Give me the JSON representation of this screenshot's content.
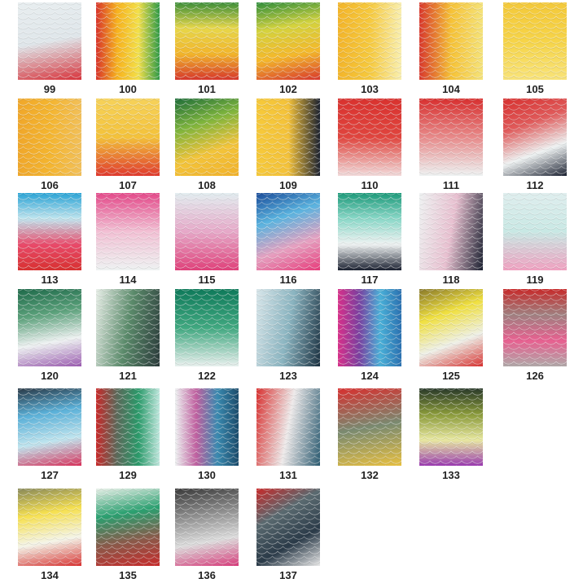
{
  "swatches": [
    {
      "label": "99",
      "colors": [
        "#e8eef0",
        "#dfe6ea",
        "#d8323a"
      ],
      "dir": "170deg"
    },
    {
      "label": "100",
      "colors": [
        "#d9352b",
        "#f7b21e",
        "#f3e04a",
        "#2f9a47"
      ],
      "dir": "90deg"
    },
    {
      "label": "101",
      "colors": [
        "#3d8f3a",
        "#e7d74a",
        "#f2b52a",
        "#d6362b"
      ],
      "dir": "180deg"
    },
    {
      "label": "102",
      "colors": [
        "#2f8e3c",
        "#d4d33e",
        "#f4b82a",
        "#d8382d"
      ],
      "dir": "170deg"
    },
    {
      "label": "103",
      "colors": [
        "#f3b52a",
        "#f6c93d",
        "#f9efb0"
      ],
      "dir": "90deg"
    },
    {
      "label": "104",
      "colors": [
        "#d8382d",
        "#f6c236",
        "#f5e37a"
      ],
      "dir": "90deg"
    },
    {
      "label": "105",
      "colors": [
        "#f4c93a",
        "#f6d448",
        "#f8e37a"
      ],
      "dir": "180deg"
    },
    {
      "label": "106",
      "colors": [
        "#f0a72a",
        "#f4b52f",
        "#f2c05a"
      ],
      "dir": "90deg"
    },
    {
      "label": "107",
      "colors": [
        "#f6d25a",
        "#f4c23a",
        "#e0392d"
      ],
      "dir": "180deg"
    },
    {
      "label": "108",
      "colors": [
        "#1f6e3a",
        "#7eb43c",
        "#f3c43a",
        "#f2b22a"
      ],
      "dir": "160deg"
    },
    {
      "label": "109",
      "colors": [
        "#f6c93a",
        "#f4c23a",
        "#1c2230"
      ],
      "dir": "90deg"
    },
    {
      "label": "110",
      "colors": [
        "#d9322f",
        "#e0453e",
        "#f2dada"
      ],
      "dir": "180deg"
    },
    {
      "label": "111",
      "colors": [
        "#d8302f",
        "#e88a8a",
        "#eef2f2"
      ],
      "dir": "180deg"
    },
    {
      "label": "112",
      "colors": [
        "#d8302f",
        "#e05a5a",
        "#eef2f2",
        "#1a2030"
      ],
      "dir": "160deg"
    },
    {
      "label": "113",
      "colors": [
        "#2aa4d6",
        "#bfe4ee",
        "#e94a6a",
        "#d8302f"
      ],
      "dir": "180deg"
    },
    {
      "label": "114",
      "colors": [
        "#e44a8a",
        "#f2c0d4",
        "#eef2f2"
      ],
      "dir": "180deg"
    },
    {
      "label": "115",
      "colors": [
        "#e2edf0",
        "#e6a8c8",
        "#e0407a"
      ],
      "dir": "180deg"
    },
    {
      "label": "116",
      "colors": [
        "#1a4c9a",
        "#5ab4e0",
        "#e6a0c0",
        "#e83a7a"
      ],
      "dir": "160deg"
    },
    {
      "label": "117",
      "colors": [
        "#1d9a7a",
        "#8ad8c8",
        "#eef2f2",
        "#1a2030"
      ],
      "dir": "180deg"
    },
    {
      "label": "118",
      "colors": [
        "#eef2f2",
        "#e8c0d0",
        "#1a2030"
      ],
      "dir": "100deg"
    },
    {
      "label": "119",
      "colors": [
        "#dfeeee",
        "#c8e8e4",
        "#f0a0c0"
      ],
      "dir": "180deg"
    },
    {
      "label": "120",
      "colors": [
        "#1e6a4a",
        "#5aa07a",
        "#eef2f2",
        "#9a5ab0"
      ],
      "dir": "170deg"
    },
    {
      "label": "121",
      "colors": [
        "#e8efe8",
        "#5a8a6a",
        "#2a3a3a"
      ],
      "dir": "100deg"
    },
    {
      "label": "122",
      "colors": [
        "#0e7a5a",
        "#40a880",
        "#e8f0ee"
      ],
      "dir": "180deg"
    },
    {
      "label": "123",
      "colors": [
        "#d8e6ea",
        "#8ab4c0",
        "#1a3040"
      ],
      "dir": "100deg"
    },
    {
      "label": "124",
      "colors": [
        "#d8308a",
        "#7a40a0",
        "#4ab0d8",
        "#2a70b0"
      ],
      "dir": "90deg"
    },
    {
      "label": "125",
      "colors": [
        "#8a7a2a",
        "#f0e040",
        "#eef0e8",
        "#d8302f"
      ],
      "dir": "160deg"
    },
    {
      "label": "126",
      "colors": [
        "#c82a2a",
        "#a08080",
        "#e86090",
        "#b0a8a8"
      ],
      "dir": "180deg"
    },
    {
      "label": "127",
      "colors": [
        "#2a3a48",
        "#5ab0d8",
        "#bfe4ee",
        "#d8305a"
      ],
      "dir": "170deg"
    },
    {
      "label": "129",
      "colors": [
        "#c82a2a",
        "#5a6a5a",
        "#2a9a6a",
        "#bfe8de"
      ],
      "dir": "90deg"
    },
    {
      "label": "130",
      "colors": [
        "#eef2f2",
        "#c060a0",
        "#3a8ab0",
        "#1a4a6a"
      ],
      "dir": "90deg"
    },
    {
      "label": "131",
      "colors": [
        "#d8302f",
        "#eeeaea",
        "#2a5a70"
      ],
      "dir": "100deg"
    },
    {
      "label": "132",
      "colors": [
        "#d8302f",
        "#7a8a70",
        "#e8c040"
      ],
      "dir": "170deg"
    },
    {
      "label": "133",
      "colors": [
        "#2a3a2a",
        "#8a9a3a",
        "#e8e8a0",
        "#9a3ab0"
      ],
      "dir": "180deg"
    },
    {
      "label": "134",
      "colors": [
        "#8a8a5a",
        "#f6e050",
        "#f4f4e8",
        "#d8302f"
      ],
      "dir": "170deg"
    },
    {
      "label": "135",
      "colors": [
        "#e8f0e8",
        "#2aa070",
        "#8a5a4a",
        "#c82a2a"
      ],
      "dir": "170deg"
    },
    {
      "label": "136",
      "colors": [
        "#3a3a3a",
        "#8a8a8a",
        "#dcdcdc",
        "#d83a7a"
      ],
      "dir": "170deg"
    },
    {
      "label": "137",
      "colors": [
        "#c82a2a",
        "#5a6a70",
        "#2a3a48",
        "#e8e8e8"
      ],
      "dir": "150deg"
    }
  ]
}
